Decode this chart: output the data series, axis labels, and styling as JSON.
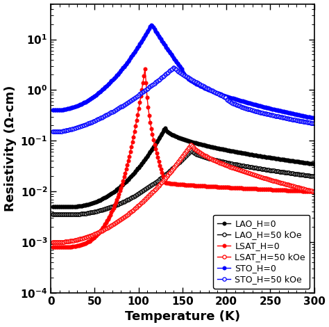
{
  "title": "",
  "xlabel": "Temperature (K)",
  "ylabel": "Resistivity (Ω-cm)",
  "xlim": [
    0,
    300
  ],
  "ylim": [
    0.0001,
    50
  ],
  "background_color": "#ffffff",
  "series": {
    "LAO_H0": {
      "color": "#000000",
      "filled": true,
      "label": "LAO_H=0"
    },
    "LAO_H50": {
      "color": "#000000",
      "filled": false,
      "label": "LAO_H=50 kOe"
    },
    "LSAT_H0": {
      "color": "#ff0000",
      "filled": true,
      "label": "LSAT_H=0"
    },
    "LSAT_H50": {
      "color": "#ff0000",
      "filled": false,
      "label": "LSAT_H=50 kOe"
    },
    "STO_H0": {
      "color": "#0000ff",
      "filled": true,
      "label": "STO_H=0"
    },
    "STO_H50": {
      "color": "#0000ff",
      "filled": false,
      "label": "STO_H=50 kOe"
    }
  }
}
